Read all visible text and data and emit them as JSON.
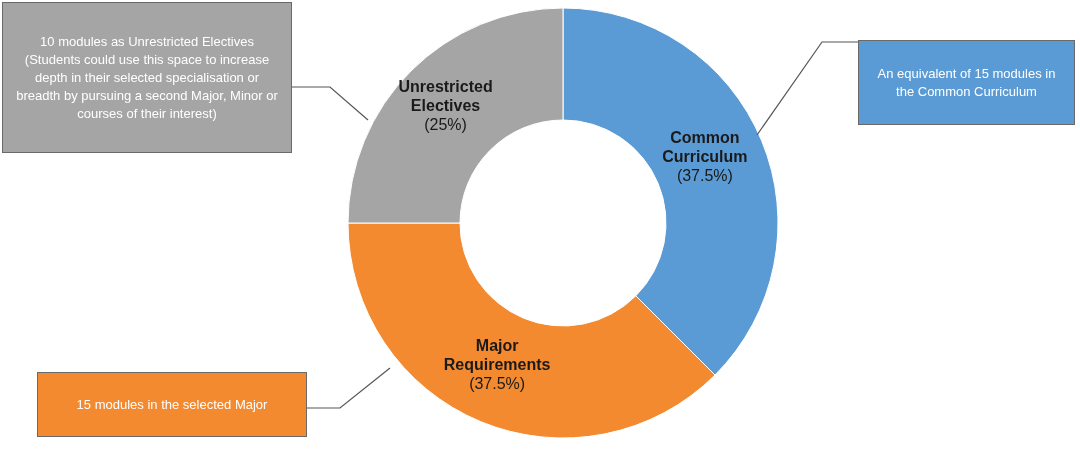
{
  "chart_data": {
    "type": "donut",
    "categories": [
      "Common Curriculum",
      "Major Requirements",
      "Unrestricted Electives"
    ],
    "values": [
      37.5,
      37.5,
      25
    ],
    "colors": [
      "#5b9bd5",
      "#f38a30",
      "#a5a5a5"
    ],
    "value_labels": [
      "(37.5%)",
      "(37.5%)",
      "(25%)"
    ],
    "annotations": [
      "An equivalent of 15 modules in the Common Curriculum",
      "15 modules in the selected Major",
      "10 modules as Unrestricted Electives (Students could use this space to increase depth in their selected specialisation or breadth by pursuing a second Major, Minor or courses of their interest)"
    ]
  }
}
